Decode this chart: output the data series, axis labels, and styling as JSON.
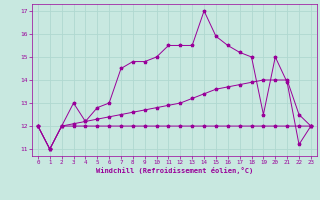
{
  "bg_color": "#c8e8e0",
  "grid_color": "#b0d8d0",
  "line_color": "#990099",
  "xlabel": "Windchill (Refroidissement éolien,°C)",
  "xlim": [
    -0.5,
    23.5
  ],
  "ylim": [
    10.7,
    17.3
  ],
  "yticks": [
    11,
    12,
    13,
    14,
    15,
    16,
    17
  ],
  "xticks": [
    0,
    1,
    2,
    3,
    4,
    5,
    6,
    7,
    8,
    9,
    10,
    11,
    12,
    13,
    14,
    15,
    16,
    17,
    18,
    19,
    20,
    21,
    22,
    23
  ],
  "series": [
    {
      "x": [
        0,
        1,
        2,
        3,
        4,
        5,
        6,
        7,
        8,
        9,
        10,
        11,
        12,
        13,
        14,
        15,
        16,
        17,
        18,
        19,
        20,
        21,
        22,
        23
      ],
      "y": [
        12,
        11,
        12,
        12,
        12,
        12,
        12,
        12,
        12,
        12,
        12,
        12,
        12,
        12,
        12,
        12,
        12,
        12,
        12,
        12,
        12,
        12,
        12,
        12
      ]
    },
    {
      "x": [
        0,
        1,
        2,
        3,
        4,
        5,
        6,
        7,
        8,
        9,
        10,
        11,
        12,
        13,
        14,
        15,
        16,
        17,
        18,
        19,
        20,
        21,
        22,
        23
      ],
      "y": [
        12,
        11,
        12,
        12.1,
        12.2,
        12.3,
        12.4,
        12.5,
        12.6,
        12.7,
        12.8,
        12.9,
        13.0,
        13.2,
        13.4,
        13.6,
        13.7,
        13.8,
        13.9,
        14.0,
        14.0,
        14.0,
        12.5,
        12.0
      ]
    },
    {
      "x": [
        0,
        1,
        2,
        3,
        4,
        5,
        6,
        7,
        8,
        9,
        10,
        11,
        12,
        13,
        14,
        15,
        16,
        17,
        18,
        19,
        20,
        21,
        22,
        23
      ],
      "y": [
        12,
        11,
        12,
        13,
        12.2,
        12.8,
        13.0,
        14.5,
        14.8,
        14.8,
        15.0,
        15.5,
        15.5,
        15.5,
        17.0,
        15.9,
        15.5,
        15.2,
        15.0,
        12.5,
        15.0,
        13.9,
        11.2,
        12.0
      ]
    }
  ]
}
